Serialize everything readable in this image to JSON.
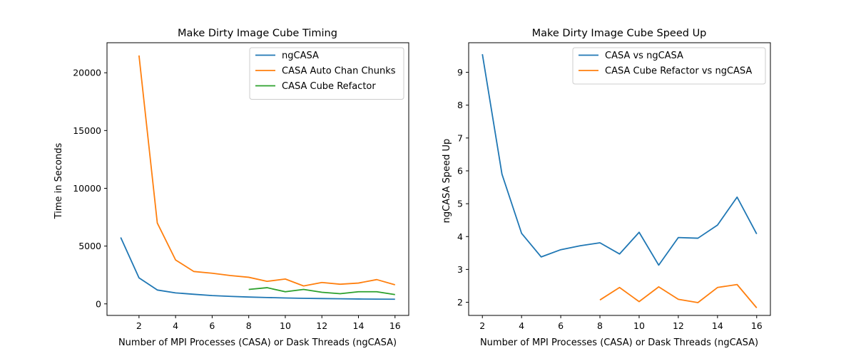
{
  "chart_data": [
    {
      "type": "line",
      "title": "Make Dirty Image Cube Timing",
      "xlabel": "Number of MPI Processes (CASA) or Dask Threads (ngCASA)",
      "ylabel": "Time in Seconds",
      "xlim": [
        0.25,
        16.75
      ],
      "ylim": [
        -1000,
        22600
      ],
      "xticks": [
        2,
        4,
        6,
        8,
        10,
        12,
        14,
        16
      ],
      "yticks": [
        0,
        5000,
        10000,
        15000,
        20000
      ],
      "legend": "top-right",
      "grid": false,
      "series": [
        {
          "name": "ngCASA",
          "color": "#1f77b4",
          "x": [
            1,
            2,
            3,
            4,
            5,
            6,
            7,
            8,
            9,
            10,
            11,
            12,
            13,
            14,
            15,
            16
          ],
          "y": [
            5750,
            2250,
            1200,
            950,
            830,
            720,
            650,
            590,
            550,
            510,
            480,
            460,
            440,
            420,
            410,
            400
          ]
        },
        {
          "name": "CASA Auto Chan Chunks",
          "color": "#ff7f0e",
          "x": [
            2,
            3,
            4,
            5,
            6,
            7,
            8,
            9,
            10,
            11,
            12,
            13,
            14,
            15,
            16
          ],
          "y": [
            21500,
            7000,
            3800,
            2800,
            2650,
            2450,
            2300,
            1950,
            2150,
            1550,
            1850,
            1700,
            1800,
            2100,
            1650
          ]
        },
        {
          "name": "CASA Cube Refactor",
          "color": "#2ca02c",
          "x": [
            8,
            9,
            10,
            11,
            12,
            13,
            14,
            15,
            16
          ],
          "y": [
            1250,
            1400,
            1050,
            1250,
            1000,
            880,
            1050,
            1050,
            800
          ]
        }
      ]
    },
    {
      "type": "line",
      "title": "Make Dirty Image Cube Speed Up",
      "xlabel": "Number of MPI Processes (CASA) or Dask Threads (ngCASA)",
      "ylabel": "ngCASA Speed Up",
      "xlim": [
        1.3,
        16.7
      ],
      "ylim": [
        1.6,
        9.9
      ],
      "xticks": [
        2,
        4,
        6,
        8,
        10,
        12,
        14,
        16
      ],
      "yticks": [
        2,
        3,
        4,
        5,
        6,
        7,
        8,
        9
      ],
      "legend": "top-right",
      "grid": false,
      "series": [
        {
          "name": "CASA vs ngCASA",
          "color": "#1f77b4",
          "x": [
            2,
            3,
            4,
            5,
            6,
            7,
            8,
            9,
            10,
            11,
            12,
            13,
            14,
            15,
            16
          ],
          "y": [
            9.55,
            5.9,
            4.1,
            3.38,
            3.6,
            3.72,
            3.81,
            3.47,
            4.13,
            3.13,
            3.97,
            3.95,
            4.35,
            5.2,
            4.08
          ]
        },
        {
          "name": "CASA Cube Refactor vs ngCASA",
          "color": "#ff7f0e",
          "x": [
            8,
            9,
            10,
            11,
            12,
            13,
            14,
            15,
            16
          ],
          "y": [
            2.07,
            2.45,
            2.02,
            2.47,
            2.09,
            1.99,
            2.45,
            2.54,
            1.83
          ]
        }
      ]
    }
  ]
}
